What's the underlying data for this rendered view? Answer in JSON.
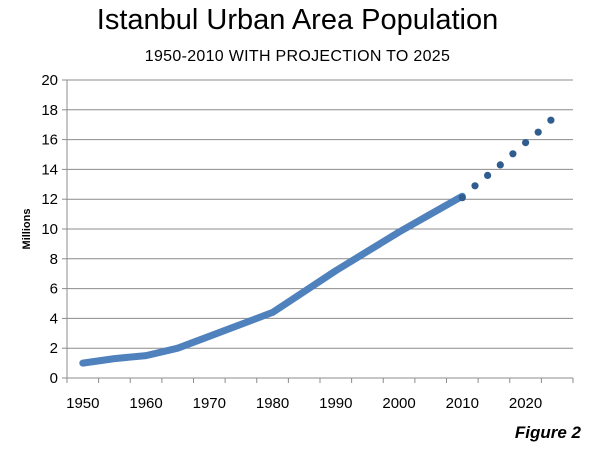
{
  "chart_data": {
    "type": "line",
    "title": "Istanbul Urban Area Population",
    "subtitle": "1950-2010 WITH PROJECTION TO 2025",
    "ylabel": "Millions",
    "xlabel": "",
    "xlim": [
      1947.5,
      2027.5
    ],
    "ylim": [
      0,
      20
    ],
    "x_ticks": [
      1950,
      1960,
      1970,
      1980,
      1990,
      2000,
      2010,
      2020
    ],
    "y_ticks": [
      0,
      2,
      4,
      6,
      8,
      10,
      12,
      14,
      16,
      18,
      20
    ],
    "grid": true,
    "series": [
      {
        "style": "solid",
        "color": "#4f81bd",
        "x": [
          1950,
          1955,
          1960,
          1965,
          1970,
          1975,
          1980,
          1985,
          1990,
          1995,
          2000,
          2005,
          2010
        ],
        "y": [
          1.0,
          1.3,
          1.5,
          2.0,
          2.8,
          3.6,
          4.4,
          5.8,
          7.2,
          8.5,
          9.8,
          11.0,
          12.2
        ]
      },
      {
        "style": "dotted",
        "color": "#2f5d8f",
        "x": [
          2010,
          2012,
          2014,
          2016,
          2018,
          2020,
          2022,
          2024
        ],
        "y": [
          12.1,
          12.9,
          13.6,
          14.3,
          15.05,
          15.8,
          16.5,
          17.3
        ]
      }
    ]
  },
  "figure_label": "Figure 2"
}
